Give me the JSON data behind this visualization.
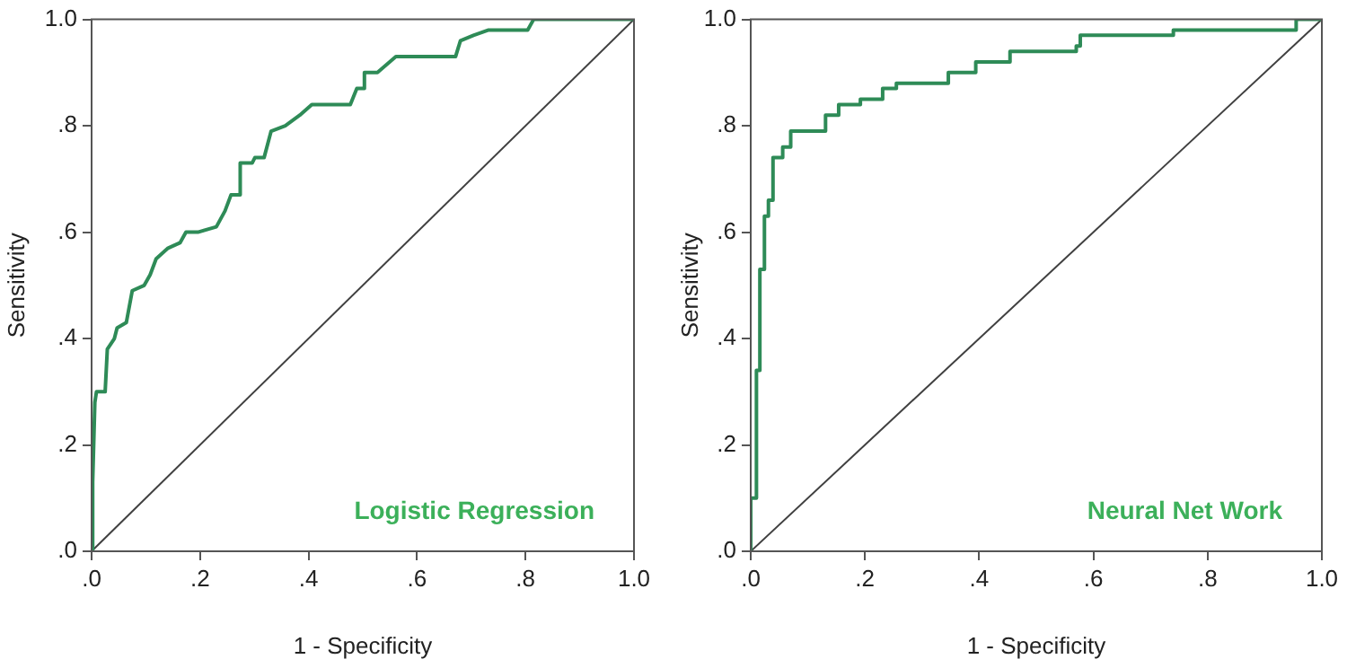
{
  "chart_data": [
    {
      "type": "line",
      "xlabel": "1 - Specificity",
      "ylabel": "Sensitivity",
      "xlim": [
        0,
        1
      ],
      "ylim": [
        0,
        1
      ],
      "xticks": [
        {
          "value": 0,
          "label": ".0"
        },
        {
          "value": 0.2,
          "label": ".2"
        },
        {
          "value": 0.4,
          "label": ".4"
        },
        {
          "value": 0.6,
          "label": ".6"
        },
        {
          "value": 0.8,
          "label": ".8"
        },
        {
          "value": 1,
          "label": "1.0"
        }
      ],
      "yticks": [
        {
          "value": 0,
          "label": ".0"
        },
        {
          "value": 0.2,
          "label": ".2"
        },
        {
          "value": 0.4,
          "label": ".4"
        },
        {
          "value": 0.6,
          "label": ".6"
        },
        {
          "value": 0.8,
          "label": ".8"
        },
        {
          "value": 1,
          "label": "1.0"
        }
      ],
      "grid": false,
      "marker": "none",
      "line_style": "solid",
      "series": [
        {
          "name": "Logistic Regression",
          "color": "#2e8b57",
          "x": [
            0,
            0.002,
            0.006,
            0.009,
            0.025,
            0.029,
            0.042,
            0.047,
            0.064,
            0.075,
            0.097,
            0.108,
            0.119,
            0.141,
            0.163,
            0.174,
            0.196,
            0.23,
            0.246,
            0.257,
            0.272,
            0.274,
            0.296,
            0.301,
            0.318,
            0.331,
            0.357,
            0.384,
            0.406,
            0.477,
            0.489,
            0.503,
            0.503,
            0.527,
            0.561,
            0.671,
            0.68,
            0.704,
            0.732,
            0.804,
            0.815,
            1
          ],
          "values": [
            0,
            0.13,
            0.28,
            0.3,
            0.3,
            0.38,
            0.4,
            0.42,
            0.43,
            0.49,
            0.5,
            0.52,
            0.55,
            0.57,
            0.58,
            0.6,
            0.6,
            0.61,
            0.64,
            0.67,
            0.67,
            0.73,
            0.73,
            0.74,
            0.74,
            0.79,
            0.8,
            0.82,
            0.84,
            0.84,
            0.87,
            0.87,
            0.9,
            0.9,
            0.93,
            0.93,
            0.96,
            0.97,
            0.98,
            0.98,
            1,
            1
          ]
        },
        {
          "type": "line",
          "color": "#404040",
          "x": [
            0,
            1
          ],
          "values": [
            0,
            1
          ]
        }
      ]
    },
    {
      "type": "line",
      "xlabel": "1 - Specificity",
      "ylabel": "Sensitivity",
      "xlim": [
        0,
        1
      ],
      "ylim": [
        0,
        1
      ],
      "xticks": [
        {
          "value": 0,
          "label": ".0"
        },
        {
          "value": 0.2,
          "label": ".2"
        },
        {
          "value": 0.4,
          "label": ".4"
        },
        {
          "value": 0.6,
          "label": ".6"
        },
        {
          "value": 0.8,
          "label": ".8"
        },
        {
          "value": 1,
          "label": "1.0"
        }
      ],
      "yticks": [
        {
          "value": 0,
          "label": ".0"
        },
        {
          "value": 0.2,
          "label": ".2"
        },
        {
          "value": 0.4,
          "label": ".4"
        },
        {
          "value": 0.6,
          "label": ".6"
        },
        {
          "value": 0.8,
          "label": ".8"
        },
        {
          "value": 1,
          "label": "1.0"
        }
      ],
      "grid": false,
      "marker": "none",
      "line_style": "solid",
      "series": [
        {
          "name": "Neural Net Work",
          "color": "#2e8b57",
          "x": [
            0,
            0,
            0.01,
            0.01,
            0.016,
            0.016,
            0.024,
            0.024,
            0.031,
            0.031,
            0.039,
            0.039,
            0.056,
            0.056,
            0.07,
            0.07,
            0.131,
            0.131,
            0.154,
            0.154,
            0.192,
            0.192,
            0.231,
            0.231,
            0.255,
            0.255,
            0.346,
            0.346,
            0.394,
            0.394,
            0.454,
            0.454,
            0.57,
            0.57,
            0.577,
            0.577,
            0.74,
            0.74,
            0.955,
            0.955,
            1
          ],
          "values": [
            0,
            0.1,
            0.1,
            0.34,
            0.34,
            0.53,
            0.53,
            0.63,
            0.63,
            0.66,
            0.66,
            0.74,
            0.74,
            0.76,
            0.76,
            0.79,
            0.79,
            0.82,
            0.82,
            0.84,
            0.84,
            0.85,
            0.85,
            0.87,
            0.87,
            0.88,
            0.88,
            0.9,
            0.9,
            0.92,
            0.92,
            0.94,
            0.94,
            0.95,
            0.95,
            0.97,
            0.97,
            0.98,
            0.98,
            1,
            1
          ]
        },
        {
          "type": "line",
          "color": "#404040",
          "x": [
            0,
            1
          ],
          "values": [
            0,
            1
          ]
        }
      ]
    }
  ]
}
